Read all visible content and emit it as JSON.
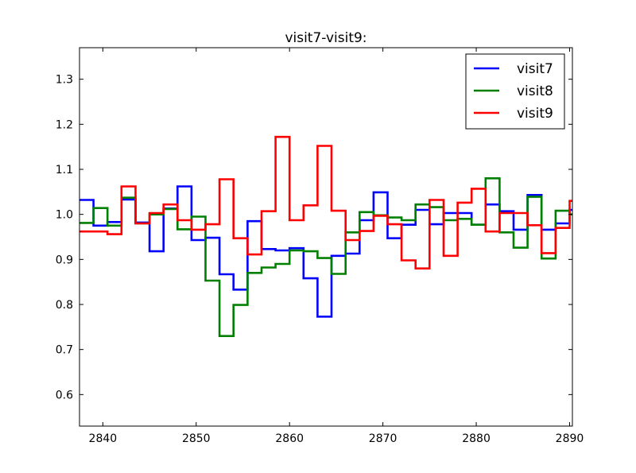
{
  "chart_data": {
    "type": "line",
    "step": true,
    "title": "visit7-visit9:",
    "xlabel": "",
    "ylabel": "",
    "xlim": [
      2837.5,
      2890.3
    ],
    "ylim": [
      0.53,
      1.37
    ],
    "xticks": [
      2840,
      2850,
      2860,
      2870,
      2880,
      2890
    ],
    "yticks": [
      0.6,
      0.7,
      0.8,
      0.9,
      1.0,
      1.1,
      1.2,
      1.3
    ],
    "grid": false,
    "legend": {
      "placement": "top-right",
      "entries": [
        "visit7",
        "visit8",
        "visit9"
      ]
    },
    "x_edges": [
      2837.5,
      2839.0,
      2840.5,
      2842.0,
      2843.5,
      2845.0,
      2846.5,
      2848.0,
      2849.5,
      2851.0,
      2852.5,
      2854.0,
      2855.5,
      2857.0,
      2858.5,
      2860.0,
      2861.5,
      2863.0,
      2864.5,
      2866.0,
      2867.5,
      2869.0,
      2870.5,
      2872.0,
      2873.5,
      2875.0,
      2876.5,
      2878.0,
      2879.5,
      2881.0,
      2882.5,
      2884.0,
      2885.5,
      2887.0,
      2888.5,
      2890.0
    ],
    "series": [
      {
        "name": "visit7",
        "color": "#0000ff",
        "values": [
          1.032,
          0.975,
          0.983,
          1.033,
          0.982,
          0.918,
          1.013,
          1.062,
          0.943,
          0.948,
          0.867,
          0.833,
          0.985,
          0.923,
          0.92,
          0.925,
          0.858,
          0.773,
          0.908,
          0.913,
          0.987,
          1.049,
          0.947,
          0.977,
          1.01,
          0.978,
          1.003,
          1.003,
          0.977,
          1.022,
          1.007,
          0.966,
          1.043,
          0.966,
          0.98,
          1.01
        ]
      },
      {
        "name": "visit8",
        "color": "#008000",
        "values": [
          0.981,
          1.014,
          0.975,
          1.037,
          0.98,
          1.0,
          1.012,
          0.967,
          0.995,
          0.853,
          0.73,
          0.799,
          0.87,
          0.882,
          0.89,
          0.92,
          0.918,
          0.903,
          0.868,
          0.96,
          1.005,
          0.998,
          0.993,
          0.987,
          1.022,
          1.016,
          0.987,
          0.99,
          0.977,
          1.08,
          0.96,
          0.926,
          1.039,
          0.902,
          1.008,
          1.0
        ]
      },
      {
        "name": "visit9",
        "color": "#ff0000",
        "values": [
          0.962,
          0.962,
          0.956,
          1.062,
          0.98,
          1.003,
          1.022,
          0.987,
          0.966,
          0.978,
          1.078,
          0.947,
          0.911,
          1.007,
          1.172,
          0.987,
          1.02,
          1.152,
          1.008,
          0.943,
          0.963,
          0.997,
          0.978,
          0.898,
          0.88,
          1.032,
          0.908,
          1.026,
          1.057,
          0.962,
          1.003,
          1.003,
          0.976,
          0.914,
          0.97,
          1.03
        ]
      }
    ]
  }
}
